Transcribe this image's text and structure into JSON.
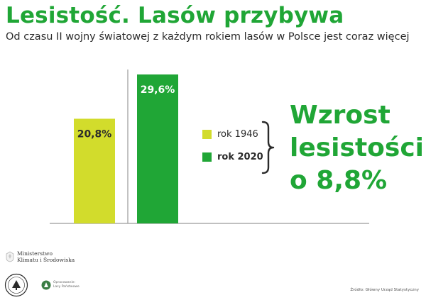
{
  "title": "Lesistość. Lasów przybywa",
  "subtitle": "Od czasu II wojny światowej z każdym rokiem lasów w Polsce jest coraz więcej",
  "headline": [
    "Wzrost",
    "lesistości",
    "o 8,8%"
  ],
  "colors": {
    "green": "#20a636",
    "lime": "#d2dc2c",
    "text": "#2b2b2b"
  },
  "chart_data": {
    "type": "bar",
    "categories": [
      "rok 1946",
      "rok 2020"
    ],
    "values": [
      20.8,
      29.6
    ],
    "value_labels": [
      "20,8%",
      "29,6%"
    ],
    "colors": [
      "#d2dc2c",
      "#20a636"
    ],
    "ylim": [
      0,
      35
    ],
    "grid": false,
    "legend": {
      "placement": "right",
      "items": [
        {
          "label": "rok 1946",
          "color": "#d2dc2c",
          "bold": false
        },
        {
          "label": "rok 2020",
          "color": "#20a636",
          "bold": true
        }
      ]
    }
  },
  "logos": {
    "ministry_line1": "Ministerstwo",
    "ministry_line2": "Klimatu i Środowiska",
    "forest_line1": "Opracowanie:",
    "forest_line2": "Lasy Państwowe"
  },
  "source": "Źródło: Główny Urząd Statystyczny"
}
